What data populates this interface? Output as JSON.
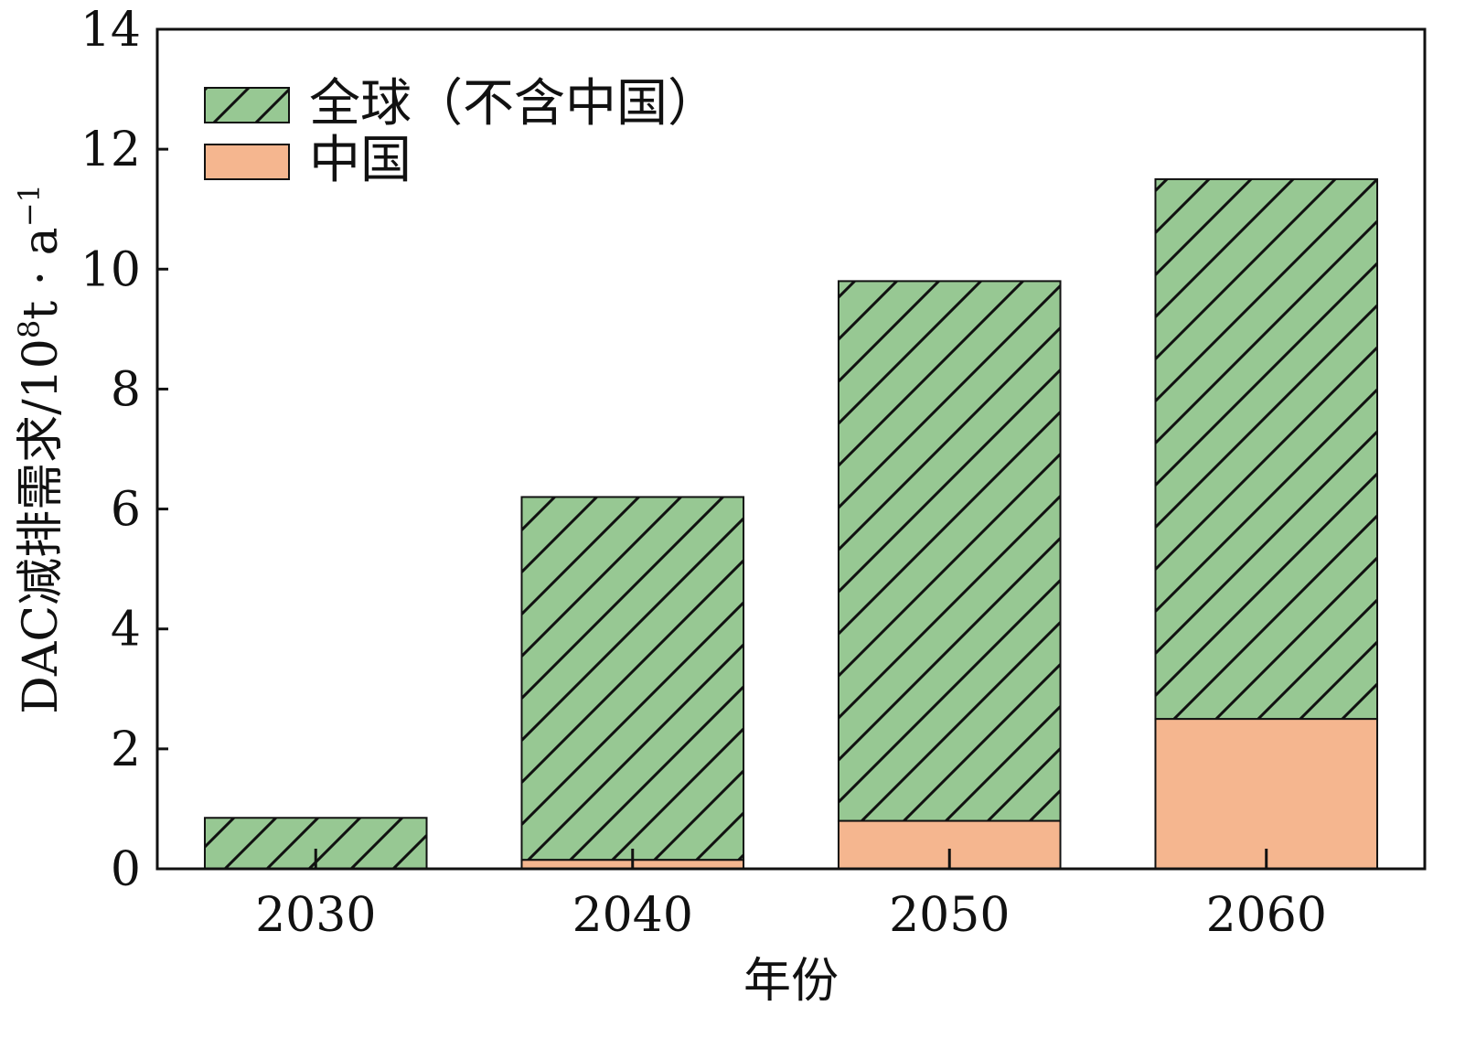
{
  "chart_data": {
    "type": "bar",
    "stacked": true,
    "categories": [
      "2030",
      "2040",
      "2050",
      "2060"
    ],
    "series": [
      {
        "name": "中国",
        "values": [
          0,
          0.15,
          0.8,
          2.5
        ],
        "color": "#f5b68f",
        "pattern": "solid"
      },
      {
        "name": "全球（不含中国）",
        "values": [
          0.85,
          6.05,
          9.0,
          9.0
        ],
        "color": "#97c893",
        "pattern": "hatch"
      }
    ],
    "xlabel": "年份",
    "ylabel_main": "DAC减排需求/10",
    "ylabel_sup": "8",
    "ylabel_tail": "t · a",
    "ylabel_sup2": "−1",
    "ylim": [
      0,
      14
    ],
    "yticks": [
      0,
      2,
      4,
      6,
      8,
      10,
      12,
      14
    ],
    "grid": false,
    "legend": {
      "placement": "top-left",
      "order": [
        "全球（不含中国）",
        "中国"
      ]
    }
  }
}
